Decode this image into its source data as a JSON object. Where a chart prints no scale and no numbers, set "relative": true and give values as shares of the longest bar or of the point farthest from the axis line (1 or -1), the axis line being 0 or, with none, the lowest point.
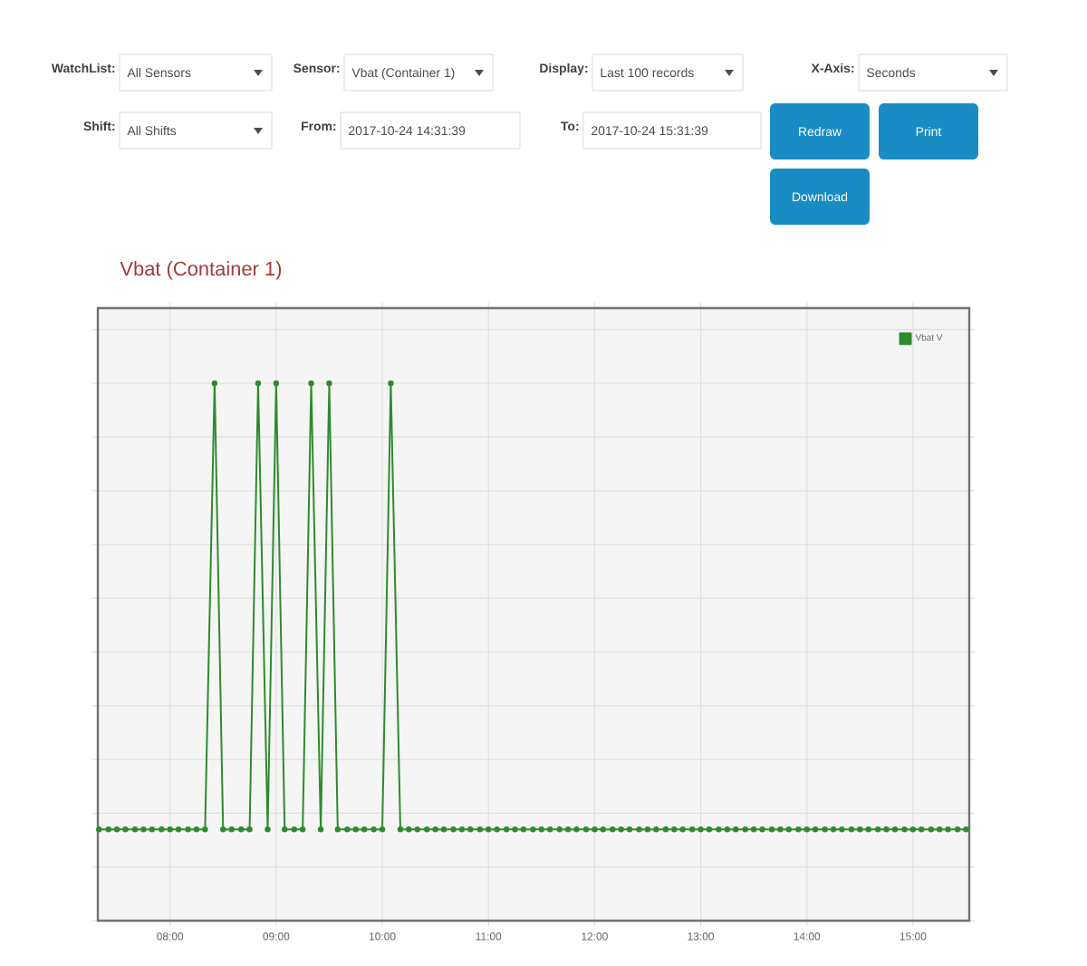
{
  "chart_data": {
    "type": "line",
    "title": "Vbat (Container 1)",
    "relative": true,
    "annotations": [
      "WatchList:",
      "All Sensors",
      "Sensor:",
      "Vbat (Container 1)",
      "Display:",
      "Last 100 records",
      "X-Axis:",
      "Seconds",
      "Shift:",
      "All Shifts",
      "From:",
      "2017-10-24 14:31:39",
      "To:",
      "2017-10-24 15:31:39",
      "Redraw",
      "Print",
      "Download"
    ],
    "x": [
      7.33,
      7.42,
      7.5,
      7.58,
      7.67,
      7.75,
      7.83,
      7.92,
      8.0,
      8.08,
      8.17,
      8.25,
      8.33,
      8.42,
      8.5,
      8.58,
      8.67,
      8.75,
      8.83,
      8.92,
      9.0,
      9.08,
      9.17,
      9.25,
      9.33,
      9.42,
      9.5,
      9.58,
      9.67,
      9.75,
      9.83,
      9.92,
      10.0,
      10.08,
      10.17,
      10.25,
      10.33,
      10.42,
      10.5,
      10.58,
      10.67,
      10.75,
      10.83,
      10.92,
      11.0,
      11.08,
      11.17,
      11.25,
      11.33,
      11.42,
      11.5,
      11.58,
      11.67,
      11.75,
      11.83,
      11.92,
      12.0,
      12.08,
      12.17,
      12.25,
      12.33,
      12.42,
      12.5,
      12.58,
      12.67,
      12.75,
      12.83,
      12.92,
      13.0,
      13.08,
      13.17,
      13.25,
      13.33,
      13.42,
      13.5,
      13.58,
      13.67,
      13.75,
      13.83,
      13.92,
      14.0,
      14.08,
      14.17,
      14.25,
      14.33,
      14.42,
      14.5,
      14.58,
      14.67,
      14.75,
      14.83,
      14.92,
      15.0,
      15.08,
      15.17,
      15.25,
      15.33,
      15.42,
      15.5
    ],
    "series": [
      {
        "name": "Vbat V",
        "color": "#2e8b2e",
        "values": [
          0.17,
          0.17,
          0.17,
          0.17,
          0.17,
          0.17,
          0.17,
          0.17,
          0.17,
          0.17,
          0.17,
          0.17,
          0.17,
          1,
          0.17,
          0.17,
          0.17,
          0.17,
          1,
          0.17,
          1,
          0.17,
          0.17,
          0.17,
          1,
          0.17,
          1,
          0.17,
          0.17,
          0.17,
          0.17,
          0.17,
          0.17,
          1,
          0.17,
          0.17,
          0.17,
          0.17,
          0.17,
          0.17,
          0.17,
          0.17,
          0.17,
          0.17,
          0.17,
          0.17,
          0.17,
          0.17,
          0.17,
          0.17,
          0.17,
          0.17,
          0.17,
          0.17,
          0.17,
          0.17,
          0.17,
          0.17,
          0.17,
          0.17,
          0.17,
          0.17,
          0.17,
          0.17,
          0.17,
          0.17,
          0.17,
          0.17,
          0.17,
          0.17,
          0.17,
          0.17,
          0.17,
          0.17,
          0.17,
          0.17,
          0.17,
          0.17,
          0.17,
          0.17,
          0.17,
          0.17,
          0.17,
          0.17,
          0.17,
          0.17,
          0.17,
          0.17,
          0.17,
          0.17,
          0.17,
          0.17,
          0.17,
          0.17,
          0.17,
          0.17,
          0.17,
          0.17,
          0.17
        ]
      }
    ],
    "xlim": [
      7.32,
      15.53
    ],
    "xticks": [
      {
        "value": 8,
        "label": "08:00"
      },
      {
        "value": 9,
        "label": "09:00"
      },
      {
        "value": 10,
        "label": "10:00"
      },
      {
        "value": 11,
        "label": "11:00"
      },
      {
        "value": 12,
        "label": "12:00"
      },
      {
        "value": 13,
        "label": "13:00"
      },
      {
        "value": 14,
        "label": "14:00"
      },
      {
        "value": 15,
        "label": "15:00"
      }
    ],
    "grid": true,
    "legend": "top right",
    "marker": "circle",
    "line_style": "solid"
  }
}
